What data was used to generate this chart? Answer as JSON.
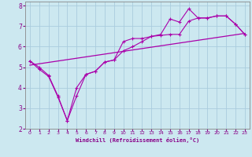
{
  "xlabel": "Windchill (Refroidissement éolien,°C)",
  "ylabel": "",
  "bg_color": "#cce8f0",
  "grid_color": "#aaccdd",
  "line_color": "#aa00aa",
  "xlim": [
    -0.5,
    23.5
  ],
  "ylim": [
    2,
    8.2
  ],
  "xticks": [
    0,
    1,
    2,
    3,
    4,
    5,
    6,
    7,
    8,
    9,
    10,
    11,
    12,
    13,
    14,
    15,
    16,
    17,
    18,
    19,
    20,
    21,
    22,
    23
  ],
  "yticks": [
    2,
    3,
    4,
    5,
    6,
    7,
    8
  ],
  "curve1_x": [
    0,
    1,
    2,
    3,
    4,
    5,
    6,
    7,
    8,
    9,
    10,
    11,
    12,
    13,
    14,
    15,
    16,
    17,
    18,
    19,
    20,
    21,
    22,
    23
  ],
  "curve1_y": [
    5.3,
    4.9,
    4.55,
    3.55,
    2.4,
    4.0,
    4.65,
    4.8,
    5.25,
    5.35,
    6.25,
    6.4,
    6.4,
    6.5,
    6.6,
    7.35,
    7.2,
    7.85,
    7.4,
    7.4,
    7.5,
    7.5,
    7.1,
    6.6
  ],
  "curve2_x": [
    0,
    1,
    2,
    3,
    4,
    5,
    6,
    7,
    8,
    9,
    10,
    11,
    12,
    13,
    14,
    15,
    16,
    17,
    18,
    19,
    20,
    21,
    22,
    23
  ],
  "curve2_y": [
    5.3,
    5.0,
    4.6,
    3.6,
    2.4,
    3.6,
    4.65,
    4.8,
    5.25,
    5.35,
    5.8,
    6.0,
    6.25,
    6.5,
    6.55,
    6.6,
    6.6,
    7.25,
    7.4,
    7.4,
    7.5,
    7.5,
    7.1,
    6.6
  ],
  "regline_x": [
    0,
    23
  ],
  "regline_y": [
    5.1,
    6.65
  ]
}
